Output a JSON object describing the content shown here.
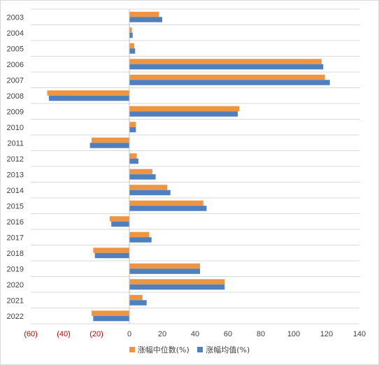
{
  "chart_data": {
    "type": "bar",
    "orientation": "horizontal",
    "categories": [
      "2003",
      "2004",
      "2005",
      "2006",
      "2007",
      "2008",
      "2009",
      "2010",
      "2011",
      "2012",
      "2013",
      "2014",
      "2015",
      "2016",
      "2017",
      "2018",
      "2019",
      "2020",
      "2021",
      "2022"
    ],
    "series": [
      {
        "name": "涨幅中位数(%)",
        "color": "#ed9542",
        "values": [
          18,
          1.5,
          3,
          117,
          119,
          -50,
          67,
          4,
          -23,
          4.5,
          14,
          23,
          45,
          -12,
          12,
          -22,
          43,
          58,
          8,
          -23
        ]
      },
      {
        "name": "涨幅均值(%)",
        "color": "#4f7fbd",
        "values": [
          20,
          2,
          3.5,
          118,
          122,
          -49,
          66,
          4,
          -24,
          5.5,
          16,
          25,
          47,
          -11,
          13.5,
          -21,
          43,
          58,
          10.5,
          -22
        ]
      }
    ],
    "xlim": [
      -60,
      140
    ],
    "xticks": [
      -60,
      -40,
      -20,
      0,
      20,
      40,
      60,
      80,
      100,
      120,
      140
    ],
    "xtick_labels": [
      "(60)",
      "(40)",
      "(20)",
      "0",
      "20",
      "40",
      "60",
      "80",
      "100",
      "120",
      "140"
    ],
    "grid": true,
    "legend": "bottom"
  }
}
